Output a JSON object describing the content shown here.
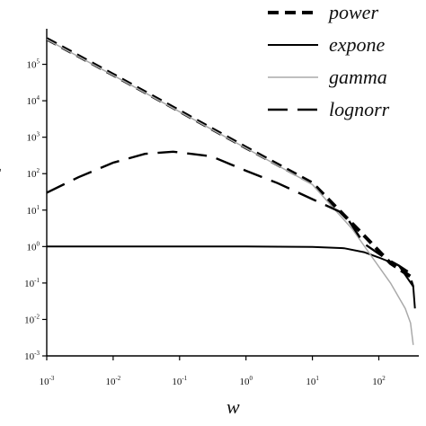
{
  "chart_data": {
    "type": "line",
    "xlabel": "w",
    "ylabel": "C",
    "xscale": "log",
    "yscale": "log",
    "xlim": [
      0.001,
      400
    ],
    "ylim": [
      0.001,
      600000
    ],
    "x_ticks": [
      "10-3",
      "10-2",
      "10-1",
      "100",
      "101",
      "102"
    ],
    "y_ticks": [
      "10-3",
      "10-2",
      "10-1",
      "100",
      "101",
      "102",
      "103",
      "104",
      "105"
    ],
    "grid": false,
    "legend_position": "top-right",
    "series": [
      {
        "name": "power",
        "style": "short-dash",
        "color": "#000000",
        "points": [
          [
            0.001,
            500000
          ],
          [
            0.01,
            52000
          ],
          [
            0.1,
            5200
          ],
          [
            1,
            520
          ],
          [
            10,
            55
          ],
          [
            60,
            2
          ],
          [
            150,
            0.35
          ],
          [
            300,
            0.15
          ]
        ]
      },
      {
        "name": "expone",
        "style": "solid",
        "color": "#000000",
        "points": [
          [
            0.001,
            1
          ],
          [
            0.01,
            1
          ],
          [
            0.1,
            1
          ],
          [
            1,
            1
          ],
          [
            10,
            0.98
          ],
          [
            30,
            0.9
          ],
          [
            60,
            0.7
          ],
          [
            100,
            0.5
          ],
          [
            200,
            0.3
          ],
          [
            330,
            0.08
          ],
          [
            350,
            0.02
          ]
        ]
      },
      {
        "name": "gamma",
        "style": "solid",
        "color": "#aaaaaa",
        "points": [
          [
            0.001,
            480000
          ],
          [
            0.01,
            50000
          ],
          [
            0.1,
            5000
          ],
          [
            1,
            500
          ],
          [
            10,
            50
          ],
          [
            40,
            3
          ],
          [
            80,
            0.5
          ],
          [
            150,
            0.1
          ],
          [
            250,
            0.02
          ],
          [
            300,
            0.008
          ],
          [
            330,
            0.002
          ]
        ]
      },
      {
        "name": "lognorr",
        "style": "long-dash",
        "color": "#000000",
        "points": [
          [
            0.001,
            30
          ],
          [
            0.003,
            80
          ],
          [
            0.01,
            200
          ],
          [
            0.03,
            350
          ],
          [
            0.08,
            400
          ],
          [
            0.15,
            350
          ],
          [
            0.3,
            300
          ],
          [
            1,
            120
          ],
          [
            3,
            55
          ],
          [
            10,
            20
          ],
          [
            30,
            8
          ],
          [
            60,
            1.2
          ],
          [
            120,
            0.5
          ],
          [
            200,
            0.3
          ],
          [
            280,
            0.2
          ],
          [
            330,
            0.08
          ]
        ]
      }
    ]
  }
}
